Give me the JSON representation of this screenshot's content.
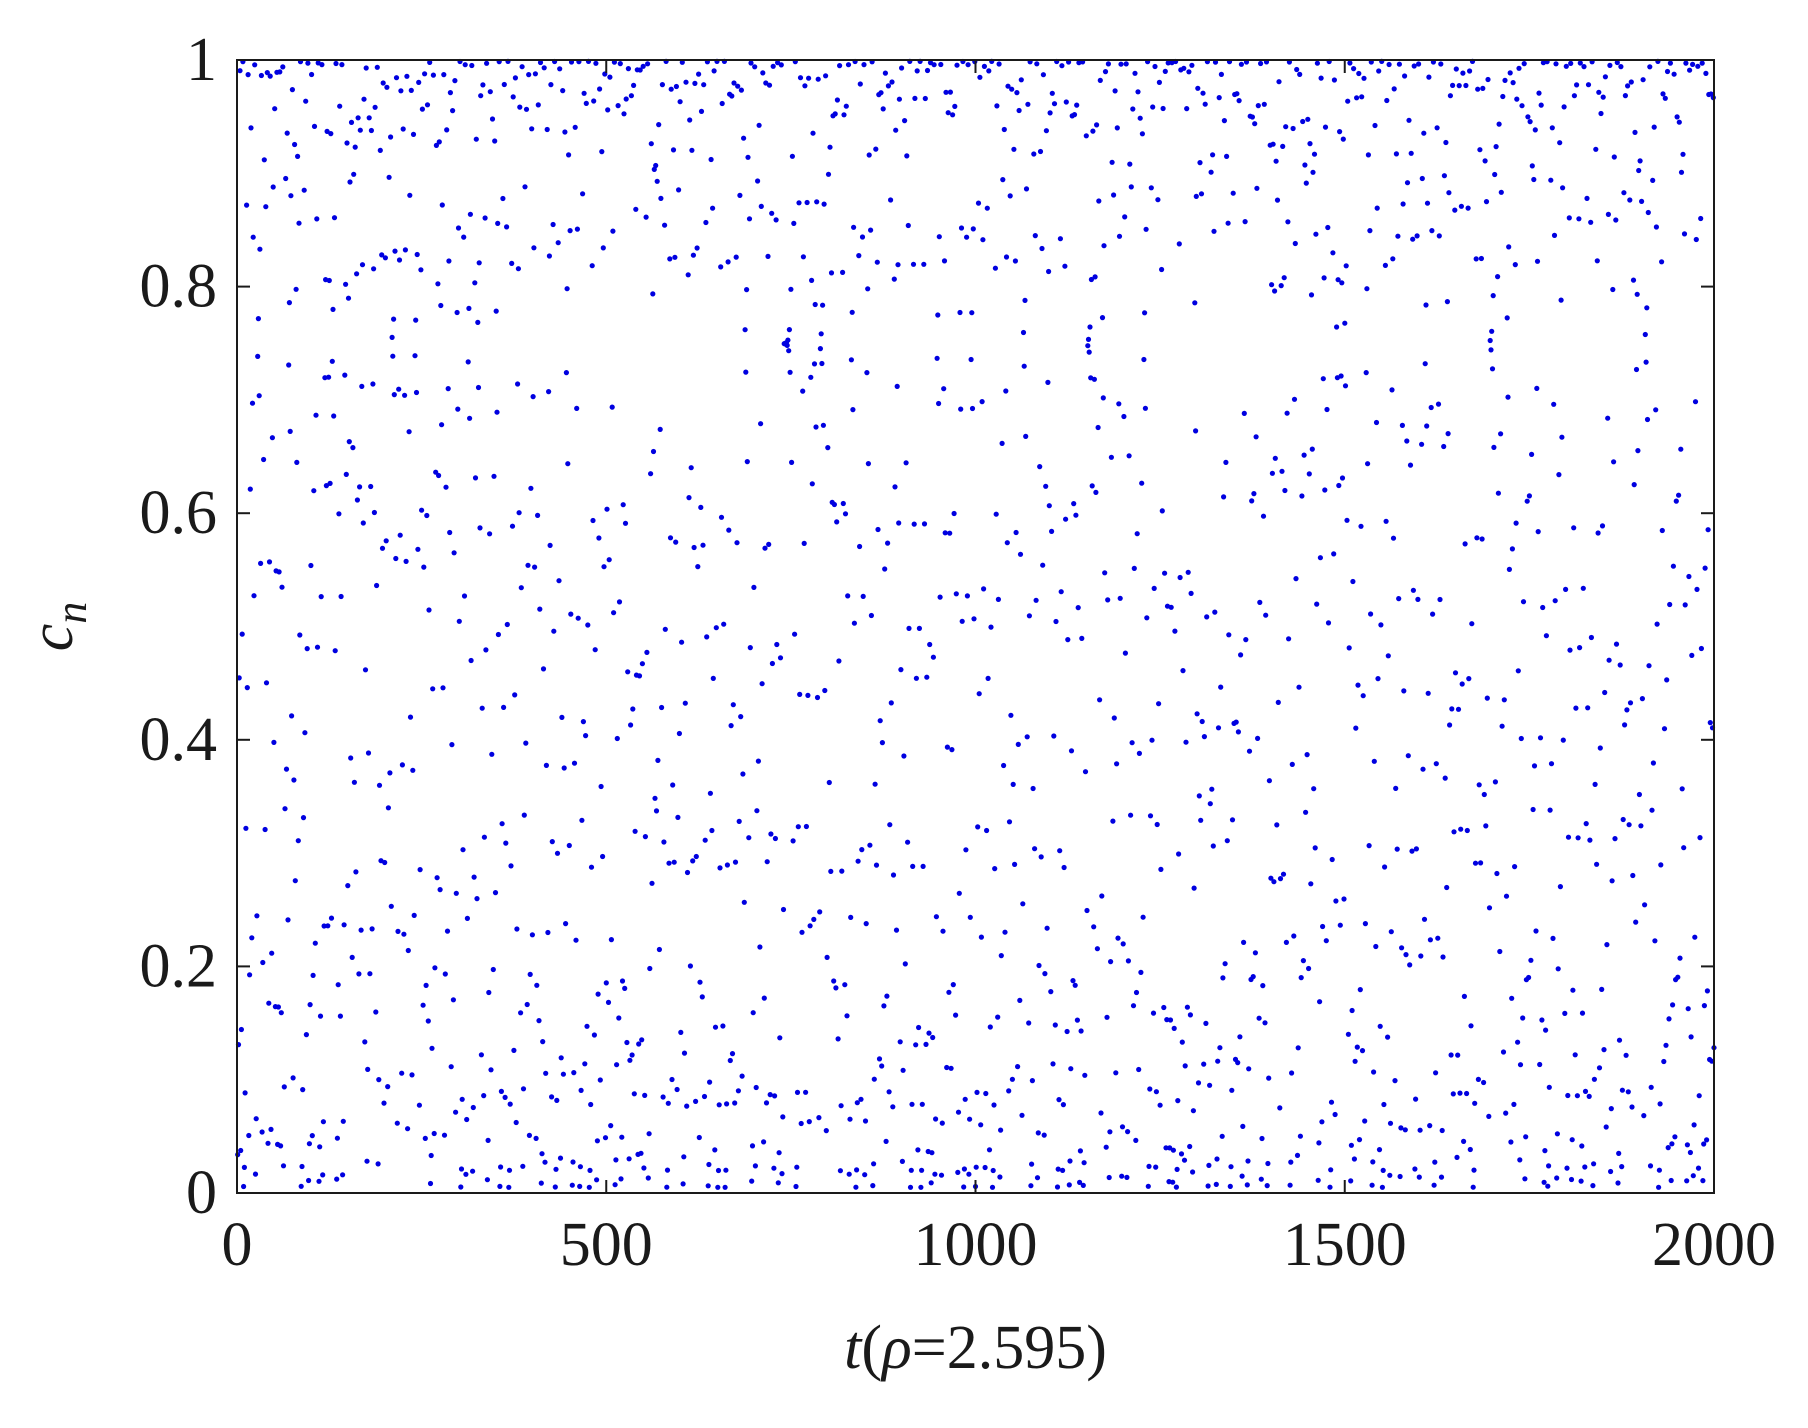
{
  "chart_data": {
    "type": "scatter",
    "title": "",
    "xlabel": {
      "var": "t",
      "open": "(",
      "greek": "ρ",
      "rest": "=2.595)"
    },
    "ylabel": {
      "var": "c",
      "sub": "n"
    },
    "xlim": [
      0,
      2000
    ],
    "ylim": [
      0,
      1
    ],
    "xticks": [
      0,
      500,
      1000,
      1500,
      2000
    ],
    "yticks": [
      0,
      0.2,
      0.4,
      0.6,
      0.8,
      1
    ],
    "xtick_labels": [
      "0",
      "500",
      "1000",
      "1500",
      "2000"
    ],
    "ytick_labels": [
      "0",
      "0.2",
      "0.4",
      "0.6",
      "0.8",
      "1"
    ],
    "grid": false,
    "legend": "none",
    "point_color": "#0000e0",
    "series": [
      {
        "rho": 2.595,
        "n_points": 2000,
        "generator": "logistic-like chaotic map, values in [0,1]",
        "x_start": 1,
        "x_step": 1
      }
    ]
  }
}
